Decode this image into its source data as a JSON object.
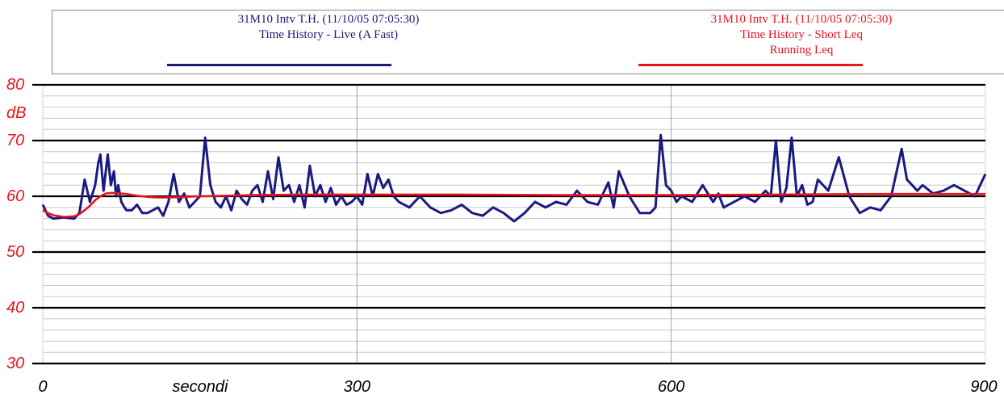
{
  "chart_data": {
    "type": "line",
    "xlim": [
      0,
      900
    ],
    "ylim": [
      30,
      80
    ],
    "x_ticks": [
      "0",
      "300",
      "600",
      "900"
    ],
    "x_tick_values": [
      0,
      300,
      600,
      900
    ],
    "xlabel": "secondi",
    "y_ticks": [
      "30",
      "40",
      "50",
      "60",
      "70",
      "80"
    ],
    "y_tick_values": [
      30,
      40,
      50,
      60,
      70,
      80
    ],
    "ylabel": "dB",
    "grid": true,
    "legend_position": "top",
    "series": [
      {
        "color": "#1a1a80",
        "legend": [
          "31M10 Intv T.H. (11/10/05 07:05:30)",
          "Time History - Live (A Fast)"
        ],
        "x": [
          0,
          5,
          10,
          20,
          30,
          35,
          40,
          45,
          50,
          53,
          55,
          58,
          62,
          65,
          68,
          70,
          72,
          75,
          78,
          80,
          85,
          90,
          95,
          100,
          110,
          115,
          120,
          125,
          130,
          135,
          140,
          145,
          150,
          155,
          160,
          165,
          170,
          175,
          180,
          185,
          190,
          195,
          200,
          205,
          210,
          215,
          220,
          225,
          230,
          235,
          240,
          245,
          250,
          255,
          260,
          265,
          270,
          275,
          280,
          285,
          290,
          295,
          300,
          305,
          310,
          315,
          320,
          325,
          330,
          335,
          340,
          350,
          360,
          370,
          380,
          390,
          400,
          410,
          420,
          430,
          440,
          450,
          460,
          470,
          480,
          490,
          500,
          510,
          520,
          530,
          540,
          545,
          550,
          560,
          570,
          580,
          585,
          590,
          595,
          600,
          605,
          610,
          620,
          630,
          640,
          645,
          650,
          660,
          670,
          680,
          690,
          695,
          700,
          705,
          710,
          715,
          720,
          725,
          730,
          735,
          740,
          750,
          760,
          770,
          780,
          790,
          800,
          810,
          820,
          825,
          830,
          835,
          840,
          850,
          860,
          870,
          880,
          890,
          900
        ],
        "values": [
          58.5,
          56.5,
          56.0,
          56.2,
          56.0,
          57.0,
          63.0,
          59.0,
          62.0,
          66.0,
          67.5,
          61.0,
          67.5,
          62.0,
          64.5,
          60.0,
          62.0,
          59.0,
          58.0,
          57.5,
          57.5,
          58.5,
          57.0,
          57.0,
          58.0,
          56.5,
          59.0,
          64.0,
          59.0,
          60.5,
          58.0,
          59.0,
          60.0,
          70.5,
          62.0,
          59.0,
          58.0,
          60.0,
          57.5,
          61.0,
          59.5,
          58.5,
          61.0,
          62.0,
          59.0,
          64.5,
          59.5,
          67.0,
          61.0,
          62.0,
          59.0,
          62.0,
          58.0,
          65.5,
          60.0,
          62.0,
          59.0,
          61.5,
          58.5,
          60.0,
          58.5,
          59.0,
          60.0,
          58.5,
          64.0,
          60.0,
          64.0,
          61.5,
          63.0,
          60.0,
          59.0,
          58.0,
          60.0,
          58.0,
          57.0,
          57.5,
          58.5,
          57.0,
          56.5,
          58.0,
          57.0,
          55.5,
          57.0,
          59.0,
          58.0,
          59.0,
          58.5,
          61.0,
          59.0,
          58.5,
          62.5,
          58.0,
          64.5,
          60.0,
          57.0,
          57.0,
          58.0,
          71.0,
          62.0,
          61.0,
          59.0,
          60.0,
          59.0,
          62.0,
          59.0,
          60.5,
          58.0,
          59.0,
          60.0,
          59.0,
          61.0,
          60.0,
          70.0,
          59.0,
          61.5,
          70.5,
          60.0,
          62.0,
          58.5,
          59.0,
          63.0,
          61.0,
          67.0,
          60.0,
          57.0,
          58.0,
          57.5,
          60.0,
          68.5,
          63.0,
          62.0,
          61.0,
          62.0,
          60.5,
          61.0,
          62.0,
          61.0,
          60.0,
          64.0
        ]
      },
      {
        "color": "#e8141e",
        "legend": [
          "31M10 Intv T.H. (11/10/05 07:05:30)",
          "Time History - Short Leq",
          "Running Leq"
        ],
        "x": [
          0,
          5,
          10,
          20,
          30,
          35,
          40,
          45,
          50,
          55,
          60,
          65,
          70,
          75,
          80,
          90,
          100,
          110,
          120,
          150,
          200,
          250,
          300,
          400,
          500,
          600,
          700,
          800,
          850,
          900
        ],
        "values": [
          57.5,
          57.0,
          56.6,
          56.3,
          56.4,
          56.8,
          57.5,
          58.3,
          59.3,
          60.0,
          60.5,
          60.6,
          60.6,
          60.5,
          60.4,
          60.1,
          59.9,
          59.8,
          59.8,
          60.0,
          60.2,
          60.3,
          60.3,
          60.3,
          60.2,
          60.2,
          60.3,
          60.4,
          60.4,
          60.4
        ]
      }
    ]
  }
}
